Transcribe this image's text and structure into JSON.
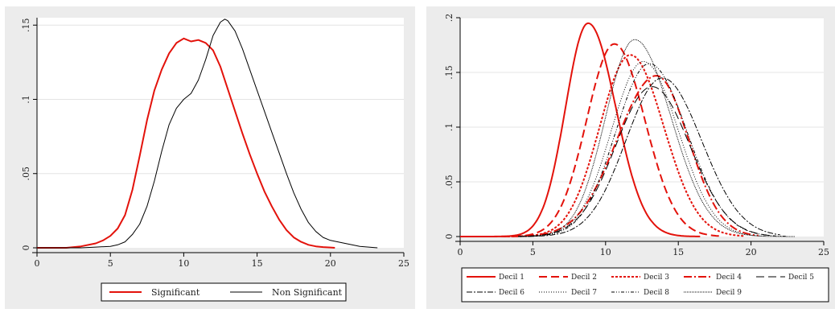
{
  "chart_data": [
    {
      "type": "line",
      "xlim": [
        0,
        25
      ],
      "ylim": [
        0,
        0.155
      ],
      "xticks": [
        0,
        5,
        10,
        15,
        20,
        25
      ],
      "yticks": [
        0,
        0.05,
        0.1,
        0.15
      ],
      "xtick_labels": [
        "0",
        "5",
        "10",
        "15",
        "20",
        "25"
      ],
      "ytick_labels": [
        "0",
        ".05",
        ".1",
        ".15"
      ],
      "grid": "horizontal",
      "legend_position": "bottom",
      "series": [
        {
          "name": "Significant",
          "color": "#e3120b",
          "dash": "solid",
          "width": 2,
          "x": [
            0,
            2,
            3,
            4,
            4.5,
            5,
            5.5,
            6,
            6.5,
            7,
            7.5,
            8,
            8.5,
            9,
            9.5,
            10,
            10.5,
            11,
            11.5,
            12,
            12.5,
            13,
            13.5,
            14,
            14.5,
            15,
            15.5,
            16,
            16.5,
            17,
            17.5,
            18,
            18.5,
            19,
            19.5,
            20,
            20.3
          ],
          "y": [
            0,
            0,
            0.001,
            0.003,
            0.005,
            0.008,
            0.013,
            0.022,
            0.039,
            0.062,
            0.086,
            0.106,
            0.12,
            0.131,
            0.138,
            0.141,
            0.139,
            0.14,
            0.138,
            0.133,
            0.122,
            0.107,
            0.092,
            0.077,
            0.063,
            0.05,
            0.038,
            0.028,
            0.019,
            0.012,
            0.007,
            0.004,
            0.002,
            0.001,
            0.0005,
            0.0002,
            0
          ]
        },
        {
          "name": "Non Significant",
          "color": "#000000",
          "dash": "solid",
          "width": 1,
          "x": [
            0,
            2,
            3,
            4,
            5,
            5.5,
            6,
            6.5,
            7,
            7.5,
            8,
            8.5,
            9,
            9.5,
            10,
            10.5,
            11,
            11.5,
            12,
            12.5,
            12.8,
            13,
            13.5,
            14,
            14.5,
            15,
            15.5,
            16,
            16.5,
            17,
            17.5,
            18,
            18.5,
            19,
            19.5,
            20,
            20.5,
            21,
            22,
            23.2
          ],
          "y": [
            0,
            0,
            0,
            0.0005,
            0.001,
            0.002,
            0.004,
            0.009,
            0.016,
            0.028,
            0.045,
            0.065,
            0.083,
            0.094,
            0.1,
            0.104,
            0.113,
            0.127,
            0.143,
            0.152,
            0.154,
            0.153,
            0.146,
            0.134,
            0.12,
            0.106,
            0.092,
            0.078,
            0.064,
            0.05,
            0.037,
            0.026,
            0.017,
            0.011,
            0.007,
            0.005,
            0.004,
            0.003,
            0.001,
            0
          ]
        }
      ]
    },
    {
      "type": "line",
      "xlim": [
        0,
        25
      ],
      "ylim": [
        0,
        0.2
      ],
      "xticks": [
        0,
        5,
        10,
        15,
        20,
        25
      ],
      "yticks": [
        0,
        0.05,
        0.1,
        0.15,
        0.2
      ],
      "xtick_labels": [
        "0",
        "5",
        "10",
        "15",
        "20",
        "25"
      ],
      "ytick_labels": [
        "0",
        ".05",
        ".1",
        ".15",
        ".2"
      ],
      "grid": "horizontal",
      "legend_position": "bottom",
      "series": [
        {
          "name": "Decil 1",
          "color": "#e3120b",
          "dash": "solid",
          "width": 2,
          "peak_x": 8.8,
          "peak_y": 0.195,
          "sigma_left": 1.55,
          "sigma_right": 1.9,
          "x_min": 0,
          "x_max": 16.5
        },
        {
          "name": "Decil 2",
          "color": "#e3120b",
          "dash": "10,5",
          "width": 2,
          "peak_x": 10.6,
          "peak_y": 0.176,
          "sigma_left": 1.9,
          "sigma_right": 2.1,
          "x_min": 2,
          "x_max": 18
        },
        {
          "name": "Decil 3",
          "color": "#e3120b",
          "dash": "3,2",
          "width": 2,
          "peak_x": 11.7,
          "peak_y": 0.166,
          "sigma_left": 2.1,
          "sigma_right": 2.3,
          "x_min": 3,
          "x_max": 19.5
        },
        {
          "name": "Decil 4",
          "color": "#e3120b",
          "dash": "10,3,2,3",
          "width": 2,
          "peak_x": 13.5,
          "peak_y": 0.147,
          "sigma_left": 2.7,
          "sigma_right": 2.2,
          "x_min": 3.5,
          "x_max": 20.5
        },
        {
          "name": "Decil 5",
          "color": "#000000",
          "dash": "10,5",
          "width": 1,
          "peak_x": 13.2,
          "peak_y": 0.137,
          "sigma_left": 2.5,
          "sigma_right": 2.6,
          "x_min": 4,
          "x_max": 21.5
        },
        {
          "name": "Decil 6",
          "color": "#000000",
          "dash": "7,2,2,2",
          "width": 1,
          "peak_x": 13.9,
          "peak_y": 0.145,
          "sigma_left": 2.5,
          "sigma_right": 2.7,
          "x_min": 4,
          "x_max": 22
        },
        {
          "name": "Decil 7",
          "color": "#000000",
          "dash": "1,2",
          "width": 1,
          "peak_x": 12.6,
          "peak_y": 0.16,
          "sigma_left": 2.2,
          "sigma_right": 2.4,
          "x_min": 4,
          "x_max": 21
        },
        {
          "name": "Decil 8",
          "color": "#000000",
          "dash": "4,2,1,2,1,2",
          "width": 1,
          "peak_x": 13.0,
          "peak_y": 0.158,
          "sigma_left": 2.3,
          "sigma_right": 2.6,
          "x_min": 4,
          "x_max": 22.5
        },
        {
          "name": "Decil 9",
          "color": "#000000",
          "dash": "1,1",
          "width": 1,
          "peak_x": 12.0,
          "peak_y": 0.18,
          "sigma_left": 2.0,
          "sigma_right": 2.5,
          "x_min": 4,
          "x_max": 23
        }
      ]
    }
  ]
}
